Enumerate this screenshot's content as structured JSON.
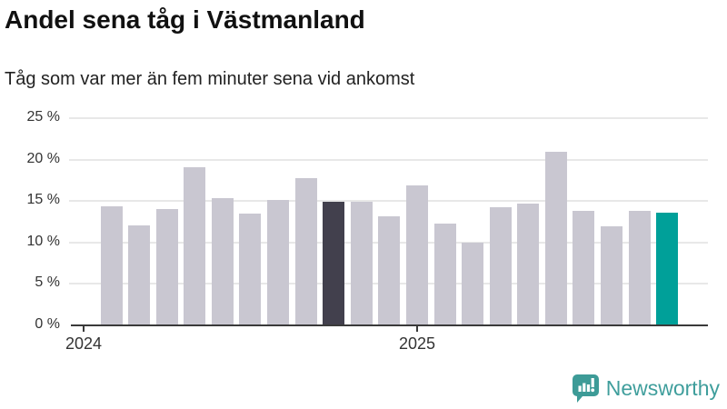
{
  "title": "Andel sena tåg i Västmanland",
  "subtitle": "Tåg som var mer än fem minuter sena vid ankomst",
  "footer": {
    "brand": "Newsworthy",
    "logo_icon": "newsworthy-speech-bubble-bar-chart-icon"
  },
  "colors": {
    "bar_default": "#c9c7d1",
    "bar_highlight_dark": "#42404d",
    "bar_highlight_teal": "#00a099",
    "axis": "#3a3a3a",
    "gridline": "#e8e8e8",
    "brand_teal": "#3f9e9c",
    "text": "#333333"
  },
  "chart_data": {
    "type": "bar",
    "x": [
      "2024-02",
      "2024-03",
      "2024-04",
      "2024-05",
      "2024-06",
      "2024-07",
      "2024-08",
      "2024-09",
      "2024-10",
      "2024-11",
      "2024-12",
      "2025-01",
      "2025-02",
      "2025-03",
      "2025-04",
      "2025-05",
      "2025-06",
      "2025-07",
      "2025-08",
      "2025-09",
      "2025-10"
    ],
    "values": [
      14.4,
      12.1,
      14.0,
      19.1,
      15.4,
      13.5,
      15.1,
      17.8,
      14.9,
      14.9,
      13.2,
      16.9,
      12.3,
      10.0,
      14.3,
      14.7,
      20.9,
      13.8,
      12.0,
      13.8,
      13.6
    ],
    "unit": "%",
    "title": "Andel sena tåg i Västmanland",
    "subtitle": "Tåg som var mer än fem minuter sena vid ankomst",
    "ylim": [
      0,
      25
    ],
    "yticks": [
      0,
      5,
      10,
      15,
      20,
      25
    ],
    "ytick_labels": [
      "0 %",
      "5 %",
      "10 %",
      "15 %",
      "20 %",
      "25 %"
    ],
    "xticks": [
      "2024-01",
      "2025-01"
    ],
    "xtick_labels": [
      "2024",
      "2025"
    ],
    "grid": true,
    "legend": false,
    "highlight_dark_index": 8,
    "highlight_teal_index": 20
  }
}
